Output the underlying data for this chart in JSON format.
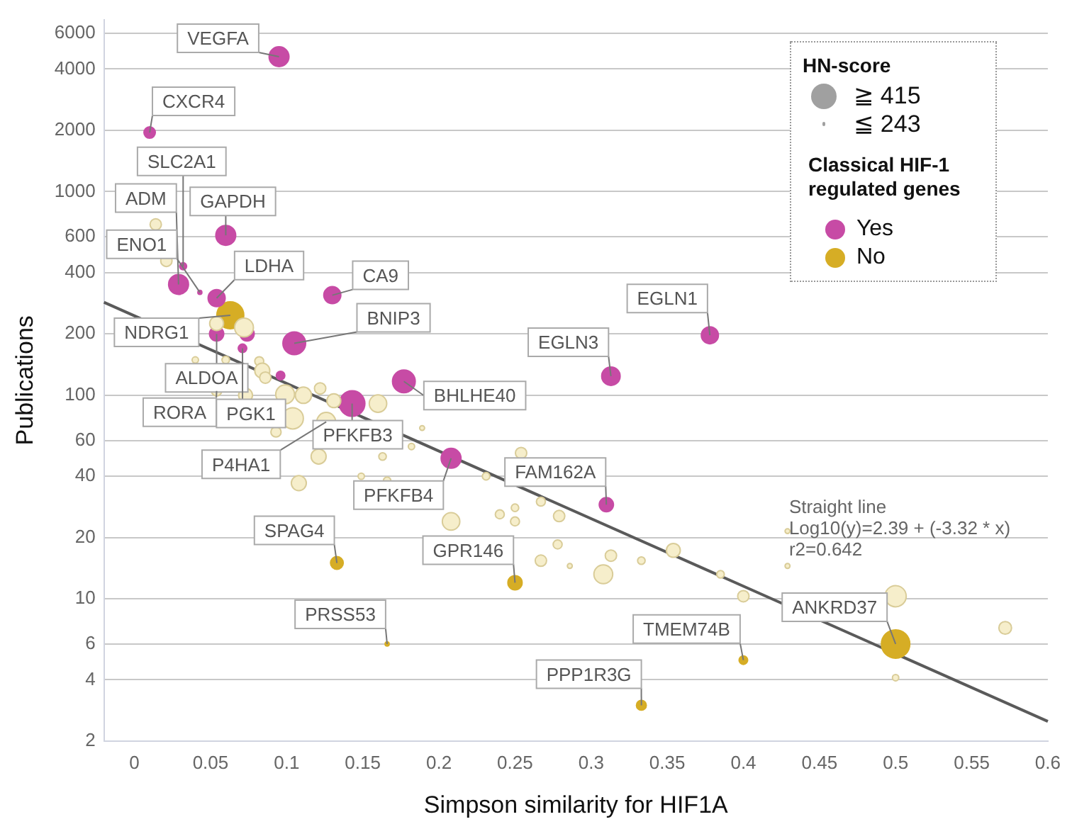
{
  "chart_data": {
    "type": "bubble",
    "xlabel": "Simpson similarity for HIF1A",
    "ylabel": "Publications",
    "legend_title": "Classical HIF-1 regulated genes",
    "legend": "top right",
    "grid": "y",
    "log": "y",
    "xlim": [
      -0.02,
      0.6
    ],
    "xticks": [
      0,
      0.05,
      0.1,
      0.15,
      0.2,
      0.25,
      0.3,
      0.35,
      0.4,
      0.45,
      0.5,
      0.55,
      0.6
    ],
    "ylim": [
      2,
      7000
    ],
    "yticks": [
      2,
      4,
      6,
      10,
      20,
      40,
      60,
      100,
      200,
      400,
      600,
      1000,
      2000,
      4000,
      6000
    ],
    "size_legend": [
      {
        "value": 0.81,
        "label": "≧ 415"
      },
      {
        "value": 0.02,
        "label": "≦ 243"
      }
    ],
    "series": [
      {
        "color": "#f6eecb",
        "x": [
          0.014,
          0.021,
          0.04,
          0.06,
          0.054,
          0.072,
          0.082,
          0.084,
          0.086,
          0.111,
          0.122,
          0.131,
          0.16,
          0.054,
          0.073,
          0.099,
          0.104,
          0.093,
          0.126,
          0.121,
          0.108,
          0.149,
          0.163,
          0.182,
          0.189,
          0.166,
          0.208,
          0.231,
          0.24,
          0.25,
          0.25,
          0.254,
          0.267,
          0.279,
          0.278,
          0.267,
          0.286,
          0.308,
          0.313,
          0.333,
          0.354,
          0.385,
          0.4,
          0.429,
          0.429,
          0.5,
          0.572,
          0.5
        ],
        "values": [
          690,
          457,
          149,
          149,
          225,
          215,
          147,
          132,
          122,
          100,
          108,
          94,
          91,
          105,
          100,
          101,
          77,
          66,
          74,
          50,
          37,
          40,
          50,
          56,
          69,
          38,
          24,
          40,
          26,
          28,
          24,
          52,
          30,
          25.5,
          18.5,
          15.4,
          14.5,
          13.2,
          16.3,
          15.4,
          17.3,
          13.2,
          10.3,
          21.5,
          14.5,
          10.3,
          7.2,
          4.1
        ],
        "sizes": [
          0.16,
          0.16,
          0.05,
          0.07,
          0.24,
          0.44,
          0.1,
          0.28,
          0.16,
          0.33,
          0.16,
          0.24,
          0.38,
          0.13,
          0.24,
          0.44,
          0.56,
          0.13,
          0.44,
          0.28,
          0.28,
          0.05,
          0.07,
          0.05,
          0.03,
          0.07,
          0.38,
          0.07,
          0.1,
          0.07,
          0.1,
          0.16,
          0.1,
          0.16,
          0.1,
          0.16,
          0.03,
          0.44,
          0.16,
          0.07,
          0.24,
          0.07,
          0.16,
          0.03,
          0.03,
          0.56,
          0.2,
          0.05
        ]
      },
      {
        "name": "Yes",
        "color": "#c74ba5",
        "x": [
          0.095,
          0.01,
          0.06,
          0.029,
          0.032,
          0.043,
          0.054,
          0.13,
          0.054,
          0.074,
          0.071,
          0.096,
          0.105,
          0.177,
          0.143,
          0.208,
          0.31,
          0.313,
          0.378
        ],
        "values": [
          4600,
          1950,
          610,
          350,
          430,
          320,
          300,
          310,
          200,
          200,
          170,
          125,
          180,
          117,
          91,
          49,
          29,
          124,
          197
        ],
        "sizes": [
          0.49,
          0.16,
          0.49,
          0.49,
          0.06,
          0.02,
          0.36,
          0.36,
          0.25,
          0.25,
          0.09,
          0.09,
          0.64,
          0.64,
          0.81,
          0.49,
          0.25,
          0.42,
          0.36
        ]
      },
      {
        "name": "No",
        "color": "#d6ad25",
        "x": [
          0.063,
          0.133,
          0.25,
          0.166,
          0.4,
          0.333,
          0.5
        ],
        "values": [
          247,
          15,
          12,
          6,
          5,
          3,
          6
        ],
        "sizes": [
          0.9,
          0.2,
          0.25,
          0.02,
          0.09,
          0.12,
          1
        ]
      },
      {
        "type": "line",
        "color": "#5a5a5a",
        "x": [
          -0.02,
          0.6
        ],
        "values": [
          286,
          2.5
        ]
      }
    ],
    "annotations": [
      "HN-score",
      {
        "text": "VEGFA",
        "x": 0.095,
        "y": 4600
      },
      {
        "text": "CXCR4",
        "x": 0.01,
        "y": 1950
      },
      {
        "text": "SLC2A1",
        "x": 0.032,
        "y": 430
      },
      {
        "text": "ADM",
        "x": 0.029,
        "y": 350
      },
      {
        "text": "ENO1",
        "x": 0.043,
        "y": 320
      },
      {
        "text": "GAPDH",
        "x": 0.06,
        "y": 610
      },
      {
        "text": "LDHA",
        "x": 0.054,
        "y": 300
      },
      {
        "text": "CA9",
        "x": 0.13,
        "y": 310
      },
      {
        "text": "NDRG1",
        "x": 0.063,
        "y": 247
      },
      {
        "text": "BNIP3",
        "x": 0.105,
        "y": 180
      },
      {
        "text": "ALDOA",
        "x": 0.054,
        "y": 200
      },
      {
        "text": "RORA",
        "x": 0.054,
        "y": 105
      },
      {
        "text": "PGK1",
        "x": 0.071,
        "y": 170
      },
      {
        "text": "PFKFB3",
        "x": 0.143,
        "y": 91
      },
      {
        "text": "P4HA1",
        "x": 0.126,
        "y": 74
      },
      {
        "text": "BHLHE40",
        "x": 0.177,
        "y": 117
      },
      {
        "text": "PFKFB4",
        "x": 0.208,
        "y": 49
      },
      {
        "text": "FAM162A",
        "x": 0.31,
        "y": 29
      },
      {
        "text": "EGLN3",
        "x": 0.313,
        "y": 124
      },
      {
        "text": "EGLN1",
        "x": 0.378,
        "y": 197
      },
      {
        "text": "SPAG4",
        "x": 0.133,
        "y": 15
      },
      {
        "text": "GPR146",
        "x": 0.25,
        "y": 12
      },
      {
        "text": "PRSS53",
        "x": 0.166,
        "y": 6
      },
      {
        "text": "TMEM74B",
        "x": 0.4,
        "y": 5
      },
      {
        "text": "PPP1R3G",
        "x": 0.333,
        "y": 3
      },
      {
        "text": "ANKRD37",
        "x": 0.5,
        "y": 6
      },
      {
        "text": "Straight line\nLog10(y)=2.39 + (-3.32 * x)\nr2=0.642",
        "x": 0.43,
        "y": 21
      }
    ]
  }
}
